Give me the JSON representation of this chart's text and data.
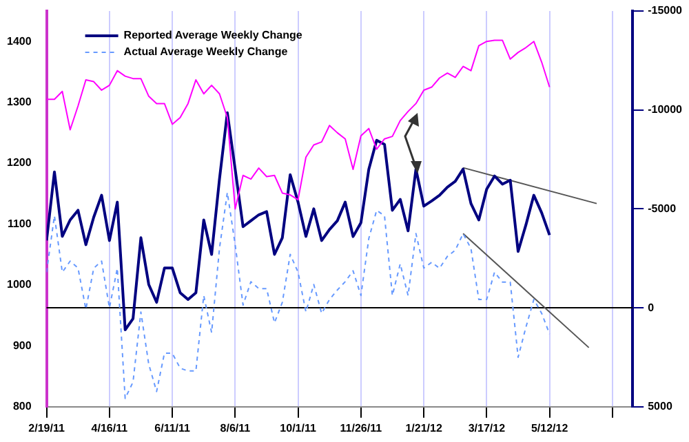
{
  "chart_data": {
    "type": "line",
    "x": [
      "2011-02-19",
      "2011-02-26",
      "2011-03-05",
      "2011-03-12",
      "2011-03-19",
      "2011-03-26",
      "2011-04-02",
      "2011-04-09",
      "2011-04-16",
      "2011-04-23",
      "2011-04-30",
      "2011-05-07",
      "2011-05-14",
      "2011-05-21",
      "2011-05-28",
      "2011-06-04",
      "2011-06-11",
      "2011-06-18",
      "2011-06-25",
      "2011-07-02",
      "2011-07-09",
      "2011-07-16",
      "2011-07-23",
      "2011-07-30",
      "2011-08-06",
      "2011-08-13",
      "2011-08-20",
      "2011-08-27",
      "2011-09-03",
      "2011-09-10",
      "2011-09-17",
      "2011-09-24",
      "2011-10-01",
      "2011-10-08",
      "2011-10-15",
      "2011-10-22",
      "2011-10-29",
      "2011-11-05",
      "2011-11-12",
      "2011-11-19",
      "2011-11-26",
      "2011-12-03",
      "2011-12-10",
      "2011-12-17",
      "2011-12-24",
      "2011-12-31",
      "2012-01-07",
      "2012-01-14",
      "2012-01-21",
      "2012-01-28",
      "2012-02-04",
      "2012-02-11",
      "2012-02-18",
      "2012-02-25",
      "2012-03-03",
      "2012-03-10",
      "2012-03-17",
      "2012-03-24",
      "2012-03-31",
      "2012-04-07",
      "2012-04-14",
      "2012-04-21",
      "2012-04-28",
      "2012-05-05",
      "2012-05-12"
    ],
    "series": [
      {
        "color": "#ff00ff",
        "values": [
          1305,
          1305,
          1318,
          1255,
          1294,
          1337,
          1334,
          1320,
          1328,
          1352,
          1343,
          1339,
          1339,
          1310,
          1298,
          1298,
          1264,
          1275,
          1298,
          1337,
          1314,
          1328,
          1314,
          1275,
          1125,
          1180,
          1174,
          1192,
          1178,
          1180,
          1151,
          1148,
          1140,
          1210,
          1230,
          1235,
          1262,
          1250,
          1240,
          1190,
          1245,
          1257,
          1223,
          1240,
          1244,
          1270,
          1285,
          1298,
          1320,
          1325,
          1340,
          1348,
          1341,
          1359,
          1352,
          1393,
          1400,
          1402,
          1402,
          1371,
          1382,
          1390,
          1400,
          1366,
          1325
        ]
      },
      {
        "name": "Reported Average Weekly Change",
        "color": "#000080",
        "axis": "y2",
        "line_style": "solid",
        "values": [
          -3400,
          -6870,
          -3610,
          -4440,
          -4930,
          -3190,
          -4580,
          -5690,
          -3400,
          -5340,
          1110,
          550,
          -3540,
          -1180,
          -280,
          -2010,
          -2010,
          -760,
          -420,
          -760,
          -4440,
          -2700,
          -6500,
          -9860,
          -7000,
          -4100,
          -4400,
          -4700,
          -4860,
          -2700,
          -3540,
          -6730,
          -5340,
          -3610,
          -5000,
          -3400,
          -3960,
          -4400,
          -5340,
          -3600,
          -4300,
          -7000,
          -8470,
          -8260,
          -4930,
          -5480,
          -3890,
          -7010,
          -5140,
          -5400,
          -5690,
          -6100,
          -6390,
          -7010,
          -5270,
          -4440,
          -6000,
          -6660,
          -6250,
          -6450,
          -2850,
          -4200,
          -5690,
          -4800,
          -3680
        ]
      },
      {
        "name": "Actual Average Weekly Change",
        "color": "#6699ff",
        "axis": "y2",
        "line_style": "dashed",
        "values": [
          -1800,
          -4650,
          -1800,
          -2360,
          -2010,
          70,
          -2000,
          -2360,
          0,
          -2000,
          4580,
          3750,
          210,
          2850,
          4230,
          2290,
          2300,
          3050,
          3190,
          3190,
          -620,
          1250,
          -3000,
          -5830,
          -3190,
          -140,
          -1320,
          -970,
          -970,
          760,
          -280,
          -2700,
          -1800,
          210,
          -1180,
          280,
          -420,
          -900,
          -1320,
          -1870,
          -620,
          -3500,
          -4930,
          -4650,
          -620,
          -2220,
          -620,
          -3750,
          -2010,
          -2300,
          -2000,
          -2600,
          -2910,
          -3750,
          -3000,
          -420,
          -420,
          -1800,
          -1300,
          -1300,
          2500,
          970,
          -420,
          280,
          1320
        ]
      },
      {
        "type": "line",
        "color": "#555555",
        "axis": "y2",
        "line_style": "solid",
        "x": [
          "2012-02-25",
          "2012-06-23"
        ],
        "values": [
          -7080,
          -5270
        ]
      },
      {
        "type": "line",
        "color": "#555555",
        "axis": "y2",
        "line_style": "solid",
        "x": [
          "2012-02-25",
          "2012-06-16"
        ],
        "values": [
          -3750,
          2010
        ]
      }
    ],
    "xlim": [
      "2011-02-19",
      "2012-07-25"
    ],
    "xticks": [
      {
        "value": "2011-02-19",
        "label": "2/19/11"
      },
      {
        "value": "2011-04-16",
        "label": "4/16/11"
      },
      {
        "value": "2011-06-11",
        "label": "6/11/11"
      },
      {
        "value": "2011-08-06",
        "label": "8/6/11"
      },
      {
        "value": "2011-10-01",
        "label": "10/1/11"
      },
      {
        "value": "2011-11-26",
        "label": "11/26/11"
      },
      {
        "value": "2012-01-21",
        "label": "1/21/12"
      },
      {
        "value": "2012-03-17",
        "label": "3/17/12"
      },
      {
        "value": "2012-05-12",
        "label": "5/12/12"
      },
      {
        "value": "2012-07-07",
        "label": null
      }
    ],
    "ylim": [
      800,
      1450
    ],
    "yticks": [
      800,
      900,
      1000,
      1100,
      1200,
      1300,
      1400
    ],
    "y2lim": [
      5000,
      -15000
    ],
    "y2ticks": [
      -15000,
      -10000,
      -5000,
      0,
      5000
    ],
    "ref_lines": [
      {
        "axis": "y2",
        "value": 0,
        "color": "#000000"
      }
    ],
    "grid": "x",
    "legend": "top left",
    "marker": "none"
  }
}
